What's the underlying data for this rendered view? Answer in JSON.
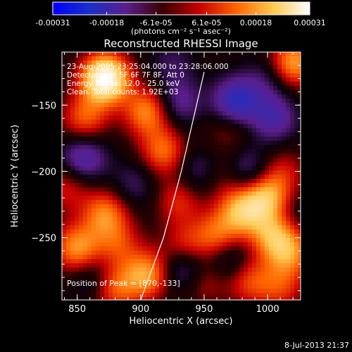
{
  "chart_data": {
    "type": "heatmap",
    "title": "Reconstructed RHESSI Image",
    "xlabel": "Heliocentric X (arcsec)",
    "ylabel": "Heliocentric Y (arcsec)",
    "xlim": [
      838,
      1026
    ],
    "ylim": [
      -297,
      -110
    ],
    "x_ticks": [
      "850",
      "900",
      "950",
      "1000"
    ],
    "x_tick_values": [
      850,
      900,
      950,
      1000
    ],
    "y_ticks": [
      "-150",
      "-200",
      "-250"
    ],
    "y_tick_values": [
      -150,
      -200,
      -250
    ],
    "colorbar": {
      "ticks": [
        "-0.00031",
        "-0.00018",
        "-6.1e-05",
        "6.1e-05",
        "0.00018",
        "0.00031"
      ],
      "tick_values": [
        -0.00031,
        -0.00018,
        -6.1e-05,
        6.1e-05,
        0.00018,
        0.00031
      ],
      "range": [
        -0.00031,
        0.00031
      ],
      "unit_label": "(photons cm⁻² s⁻¹ asec⁻²)",
      "colormap": [
        "#0000ff",
        "#1a30c8",
        "#5a1e8c",
        "#3a0000",
        "#c80000",
        "#ff6400",
        "#ffc850",
        "#ffffff"
      ]
    },
    "annotations": [
      "23-Aug-2005 23:25:04.000 to 23:28:06.000",
      "Detectors: 4F 5F 6F 7F 8F, Att 0",
      "Energy Range: 12.0 - 25.0 keV",
      "Clean. Total counts: 1.92E+03"
    ],
    "peak_label": "Position of Peak = [870,-133]",
    "peak": [
      870,
      -133
    ],
    "limb": [
      [
        900,
        -297
      ],
      [
        918,
        -250
      ],
      [
        932,
        -200
      ],
      [
        944,
        -150
      ],
      [
        950,
        -125
      ]
    ],
    "blobs": [
      {
        "x": 872,
        "y": -130,
        "v": 0.00031
      },
      {
        "x": 856,
        "y": -160,
        "v": 0.00012
      },
      {
        "x": 905,
        "y": -155,
        "v": 0.00015
      },
      {
        "x": 918,
        "y": -185,
        "v": 0.00013
      },
      {
        "x": 930,
        "y": -222,
        "v": 9e-05
      },
      {
        "x": 842,
        "y": -212,
        "v": 8e-05
      },
      {
        "x": 872,
        "y": -232,
        "v": 0.00014
      },
      {
        "x": 850,
        "y": -258,
        "v": 0.00016
      },
      {
        "x": 882,
        "y": -255,
        "v": 9e-05
      },
      {
        "x": 905,
        "y": -278,
        "v": 0.00016
      },
      {
        "x": 880,
        "y": -288,
        "v": 0.00012
      },
      {
        "x": 935,
        "y": -258,
        "v": 0.00011
      },
      {
        "x": 960,
        "y": -248,
        "v": 0.00012
      },
      {
        "x": 980,
        "y": -230,
        "v": 0.00017
      },
      {
        "x": 1000,
        "y": -220,
        "v": 0.00018
      },
      {
        "x": 1005,
        "y": -248,
        "v": 0.00016
      },
      {
        "x": 1018,
        "y": -262,
        "v": 0.00013
      },
      {
        "x": 985,
        "y": -282,
        "v": 0.00011
      },
      {
        "x": 1010,
        "y": -288,
        "v": 9e-05
      },
      {
        "x": 950,
        "y": -282,
        "v": 8e-05
      },
      {
        "x": 1020,
        "y": -118,
        "v": 0.00017
      },
      {
        "x": 970,
        "y": -168,
        "v": 6e-05
      },
      {
        "x": 1012,
        "y": -200,
        "v": 7e-05
      },
      {
        "x": 965,
        "y": -205,
        "v": 5e-05
      },
      {
        "x": 930,
        "y": -148,
        "v": -9e-05
      },
      {
        "x": 975,
        "y": -148,
        "v": -0.00016
      },
      {
        "x": 1005,
        "y": -160,
        "v": -0.00011
      },
      {
        "x": 855,
        "y": -190,
        "v": -0.00012
      },
      {
        "x": 895,
        "y": -210,
        "v": -6e-05
      },
      {
        "x": 945,
        "y": -200,
        "v": -7e-05
      },
      {
        "x": 985,
        "y": -200,
        "v": -9e-05
      },
      {
        "x": 1015,
        "y": -232,
        "v": -5e-05
      },
      {
        "x": 935,
        "y": -272,
        "v": -0.00013
      },
      {
        "x": 970,
        "y": -268,
        "v": -8e-05
      },
      {
        "x": 862,
        "y": -280,
        "v": -6e-05
      },
      {
        "x": 1000,
        "y": -130,
        "v": -6e-05
      },
      {
        "x": 925,
        "y": -118,
        "v": -5e-05
      }
    ]
  },
  "timestamp": "8-Jul-2013 21:37"
}
